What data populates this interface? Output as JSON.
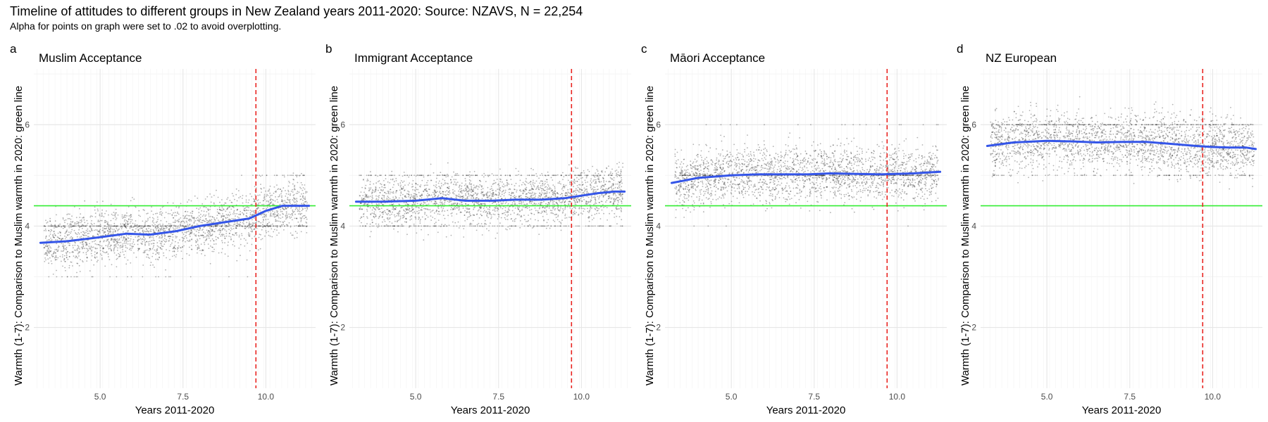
{
  "title": "Timeline of attitudes to different groups in New Zealand years 2011-2020: Source: NZAVS, N = 22,254",
  "subtitle": "Alpha for points on graph were set to .02 to avoid overplotting.",
  "colors": {
    "smooth": "#3455e8",
    "reference": "#33ee33",
    "event": "#e8231f",
    "points": "#222222",
    "grid_major": "#e6e6e6",
    "grid_minor": "#f3f3f3"
  },
  "chart_data": [
    {
      "tag": "a",
      "type": "scatter",
      "title": "Muslim Acceptance",
      "xlabel": "Years 2011-2020",
      "ylabel": "Warmth (1-7): Comparison to Muslim warmth in 2020: green line",
      "xlim": [
        3.0,
        11.5
      ],
      "ylim": [
        0.8,
        7.1
      ],
      "xticks": [
        5.0,
        7.5,
        10.0
      ],
      "xtick_labels": [
        "5.0",
        "7.5",
        "10.0"
      ],
      "yticks": [
        2,
        4,
        6
      ],
      "ytick_labels": [
        "2",
        "4",
        "6"
      ],
      "reference_y": 4.4,
      "event_x": 9.7,
      "smooth": {
        "x": [
          3.2,
          4.0,
          5.0,
          5.8,
          6.5,
          7.3,
          8.0,
          8.8,
          9.5,
          10.0,
          10.5,
          11.0,
          11.3
        ],
        "y": [
          3.67,
          3.7,
          3.78,
          3.85,
          3.83,
          3.9,
          4.0,
          4.08,
          4.15,
          4.3,
          4.4,
          4.4,
          4.4
        ]
      },
      "scatter_spread": 0.38
    },
    {
      "tag": "b",
      "type": "scatter",
      "title": "Immigrant Acceptance",
      "xlabel": "Years 2011-2020",
      "ylabel": "Warmth (1-7): Comparison to Muslim warmth in 2020: green line",
      "xlim": [
        3.0,
        11.5
      ],
      "ylim": [
        0.8,
        7.1
      ],
      "xticks": [
        5.0,
        7.5,
        10.0
      ],
      "xtick_labels": [
        "5.0",
        "7.5",
        "10.0"
      ],
      "yticks": [
        2,
        4,
        6
      ],
      "ytick_labels": [
        "2",
        "4",
        "6"
      ],
      "reference_y": 4.4,
      "event_x": 9.7,
      "smooth": {
        "x": [
          3.2,
          4.0,
          5.0,
          5.8,
          6.5,
          7.3,
          8.0,
          8.8,
          9.5,
          10.0,
          10.5,
          11.0,
          11.3
        ],
        "y": [
          4.48,
          4.48,
          4.5,
          4.55,
          4.5,
          4.5,
          4.52,
          4.52,
          4.55,
          4.6,
          4.65,
          4.68,
          4.68
        ]
      },
      "scatter_spread": 0.35
    },
    {
      "tag": "c",
      "type": "scatter",
      "title": "Māori Acceptance",
      "xlabel": "Years 2011-2020",
      "ylabel": "Warmth (1-7): Comparison to Muslim warmth in 2020: green line",
      "xlim": [
        3.0,
        11.5
      ],
      "ylim": [
        0.8,
        7.1
      ],
      "xticks": [
        5.0,
        7.5,
        10.0
      ],
      "xtick_labels": [
        "5.0",
        "7.5",
        "10.0"
      ],
      "yticks": [
        2,
        4,
        6
      ],
      "ytick_labels": [
        "2",
        "4",
        "6"
      ],
      "reference_y": 4.4,
      "event_x": 9.7,
      "smooth": {
        "x": [
          3.2,
          4.0,
          5.0,
          5.8,
          6.5,
          7.3,
          8.0,
          8.8,
          9.5,
          10.0,
          10.5,
          11.0,
          11.3
        ],
        "y": [
          4.85,
          4.95,
          5.0,
          5.02,
          5.02,
          5.02,
          5.04,
          5.03,
          5.02,
          5.03,
          5.04,
          5.06,
          5.07
        ]
      },
      "scatter_spread": 0.4
    },
    {
      "tag": "d",
      "type": "scatter",
      "title": "NZ European",
      "xlabel": "Years 2011-2020",
      "ylabel": "Warmth (1-7): Comparison to Muslim warmth in 2020: green line",
      "xlim": [
        3.0,
        11.5
      ],
      "ylim": [
        0.8,
        7.1
      ],
      "xticks": [
        5.0,
        7.5,
        10.0
      ],
      "xtick_labels": [
        "5.0",
        "7.5",
        "10.0"
      ],
      "yticks": [
        2,
        4,
        6
      ],
      "ytick_labels": [
        "2",
        "4",
        "6"
      ],
      "reference_y": 4.4,
      "event_x": 9.7,
      "smooth": {
        "x": [
          3.2,
          4.0,
          5.0,
          5.8,
          6.5,
          7.3,
          8.0,
          8.8,
          9.5,
          10.0,
          10.5,
          11.0,
          11.3
        ],
        "y": [
          5.58,
          5.65,
          5.68,
          5.67,
          5.65,
          5.66,
          5.66,
          5.62,
          5.58,
          5.56,
          5.55,
          5.55,
          5.52
        ]
      },
      "scatter_spread": 0.4
    }
  ]
}
